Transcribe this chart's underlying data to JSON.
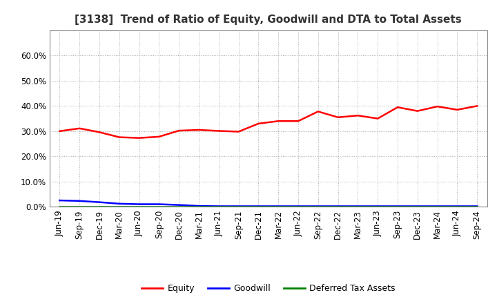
{
  "title": "[3138]  Trend of Ratio of Equity, Goodwill and DTA to Total Assets",
  "x_labels": [
    "Jun-19",
    "Sep-19",
    "Dec-19",
    "Mar-20",
    "Jun-20",
    "Sep-20",
    "Dec-20",
    "Mar-21",
    "Jun-21",
    "Sep-21",
    "Dec-21",
    "Mar-22",
    "Jun-22",
    "Sep-22",
    "Dec-22",
    "Mar-23",
    "Jun-23",
    "Sep-23",
    "Dec-23",
    "Mar-24",
    "Jun-24",
    "Sep-24"
  ],
  "equity": [
    0.3,
    0.311,
    0.296,
    0.276,
    0.273,
    0.278,
    0.302,
    0.305,
    0.301,
    0.298,
    0.33,
    0.34,
    0.34,
    0.378,
    0.355,
    0.362,
    0.35,
    0.395,
    0.38,
    0.398,
    0.385,
    0.4
  ],
  "goodwill": [
    0.025,
    0.023,
    0.018,
    0.012,
    0.01,
    0.01,
    0.007,
    0.003,
    0.002,
    0.002,
    0.002,
    0.002,
    0.002,
    0.002,
    0.002,
    0.002,
    0.002,
    0.002,
    0.002,
    0.002,
    0.002,
    0.002
  ],
  "dta": [
    0.001,
    0.001,
    0.001,
    0.001,
    0.001,
    0.001,
    0.001,
    0.001,
    0.001,
    0.001,
    0.001,
    0.001,
    0.001,
    0.001,
    0.001,
    0.001,
    0.001,
    0.001,
    0.001,
    0.001,
    0.001,
    0.001
  ],
  "equity_color": "#ff0000",
  "goodwill_color": "#0000ff",
  "dta_color": "#008000",
  "ylim": [
    0.0,
    0.7
  ],
  "yticks": [
    0.0,
    0.1,
    0.2,
    0.3,
    0.4,
    0.5,
    0.6
  ],
  "background_color": "#ffffff",
  "grid_color": "#aaaaaa",
  "legend_labels": [
    "Equity",
    "Goodwill",
    "Deferred Tax Assets"
  ],
  "title_fontsize": 11,
  "tick_fontsize": 8.5
}
